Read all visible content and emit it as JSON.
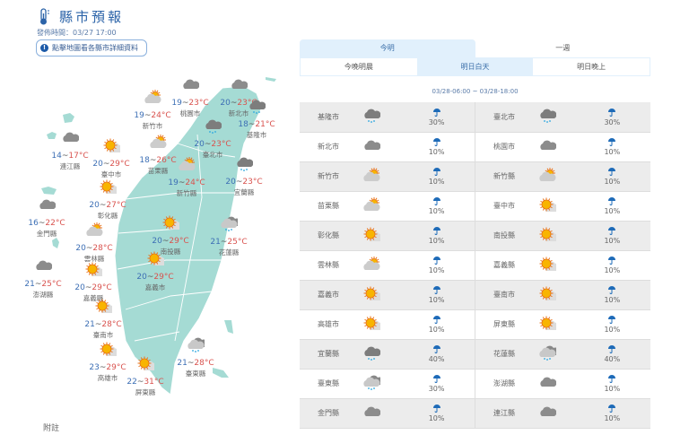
{
  "header": {
    "title": "縣市預報",
    "issued": "發佈時間：03/27 17:00",
    "hint": "點擊地圖看各縣市詳細資料",
    "hint_icon": "info-icon",
    "title_icon": "thermometer-icon"
  },
  "map": [
    {
      "name": "新竹市",
      "lo": "19",
      "hi": "24",
      "icon": "partly-cloudy"
    },
    {
      "name": "桃園市",
      "lo": "19",
      "hi": "23",
      "icon": "cloudy"
    },
    {
      "name": "新北市",
      "lo": "20",
      "hi": "23",
      "icon": "cloudy"
    },
    {
      "name": "基隆市",
      "lo": "18",
      "hi": "21",
      "icon": "rain"
    },
    {
      "name": "臺北市",
      "lo": "20",
      "hi": "23",
      "icon": "rain"
    },
    {
      "name": "連江縣",
      "lo": "14",
      "hi": "17",
      "icon": "cloudy"
    },
    {
      "name": "臺中市",
      "lo": "20",
      "hi": "29",
      "icon": "sunny"
    },
    {
      "name": "苗栗縣",
      "lo": "18",
      "hi": "26",
      "icon": "partly-cloudy"
    },
    {
      "name": "新竹縣",
      "lo": "19",
      "hi": "24",
      "icon": "partly-cloudy"
    },
    {
      "name": "宜蘭縣",
      "lo": "20",
      "hi": "23",
      "icon": "rain"
    },
    {
      "name": "彰化縣",
      "lo": "20",
      "hi": "27",
      "icon": "sunny"
    },
    {
      "name": "金門縣",
      "lo": "16",
      "hi": "22",
      "icon": "cloudy"
    },
    {
      "name": "南投縣",
      "lo": "20",
      "hi": "29",
      "icon": "sunny"
    },
    {
      "name": "花蓮縣",
      "lo": "21",
      "hi": "25",
      "icon": "showers"
    },
    {
      "name": "雲林縣",
      "lo": "20",
      "hi": "28",
      "icon": "partly-cloudy"
    },
    {
      "name": "澎湖縣",
      "lo": "21",
      "hi": "25",
      "icon": "cloudy"
    },
    {
      "name": "嘉義市",
      "lo": "20",
      "hi": "29",
      "icon": "sunny"
    },
    {
      "name": "嘉義縣",
      "lo": "20",
      "hi": "29",
      "icon": "sunny"
    },
    {
      "name": "臺南市",
      "lo": "21",
      "hi": "28",
      "icon": "sunny"
    },
    {
      "name": "高雄市",
      "lo": "23",
      "hi": "29",
      "icon": "sunny"
    },
    {
      "name": "屏東縣",
      "lo": "22",
      "hi": "31",
      "icon": "sunny"
    },
    {
      "name": "臺東縣",
      "lo": "21",
      "hi": "28",
      "icon": "showers"
    }
  ],
  "unit": "°C",
  "note": "附註",
  "tabs": [
    {
      "label": "今明",
      "active": true
    },
    {
      "label": "一週",
      "active": false
    }
  ],
  "subtabs": [
    {
      "label": "今晚明晨",
      "active": false
    },
    {
      "label": "明日白天",
      "active": true
    },
    {
      "label": "明日晚上",
      "active": false
    }
  ],
  "range": "03/28-06:00 ~ 03/28-18:00",
  "table": [
    [
      {
        "city": "基隆市",
        "icon": "rain",
        "pop": "30%"
      },
      {
        "city": "臺北市",
        "icon": "rain",
        "pop": "30%"
      }
    ],
    [
      {
        "city": "新北市",
        "icon": "cloudy",
        "pop": "10%"
      },
      {
        "city": "桃園市",
        "icon": "cloudy",
        "pop": "10%"
      }
    ],
    [
      {
        "city": "新竹市",
        "icon": "partly-cloudy",
        "pop": "10%"
      },
      {
        "city": "新竹縣",
        "icon": "partly-cloudy",
        "pop": "10%"
      }
    ],
    [
      {
        "city": "苗栗縣",
        "icon": "partly-cloudy",
        "pop": "10%"
      },
      {
        "city": "臺中市",
        "icon": "sunny",
        "pop": "10%"
      }
    ],
    [
      {
        "city": "彰化縣",
        "icon": "sunny",
        "pop": "10%"
      },
      {
        "city": "南投縣",
        "icon": "sunny",
        "pop": "10%"
      }
    ],
    [
      {
        "city": "雲林縣",
        "icon": "partly-cloudy",
        "pop": "10%"
      },
      {
        "city": "嘉義縣",
        "icon": "sunny",
        "pop": "10%"
      }
    ],
    [
      {
        "city": "嘉義市",
        "icon": "sunny",
        "pop": "10%"
      },
      {
        "city": "臺南市",
        "icon": "sunny",
        "pop": "10%"
      }
    ],
    [
      {
        "city": "高雄市",
        "icon": "sunny",
        "pop": "10%"
      },
      {
        "city": "屏東縣",
        "icon": "sunny",
        "pop": "10%"
      }
    ],
    [
      {
        "city": "宜蘭縣",
        "icon": "rain",
        "pop": "40%"
      },
      {
        "city": "花蓮縣",
        "icon": "showers",
        "pop": "40%"
      }
    ],
    [
      {
        "city": "臺東縣",
        "icon": "showers",
        "pop": "30%"
      },
      {
        "city": "澎湖縣",
        "icon": "cloudy",
        "pop": "10%"
      }
    ],
    [
      {
        "city": "金門縣",
        "icon": "cloudy",
        "pop": "10%"
      },
      {
        "city": "連江縣",
        "icon": "cloudy",
        "pop": "10%"
      }
    ]
  ],
  "colors": {
    "accent": "#2b63a8",
    "low": "#3d6fb5",
    "high": "#d9534f",
    "land": "#a5dbd4",
    "tab_active": "#e1f0fc"
  }
}
